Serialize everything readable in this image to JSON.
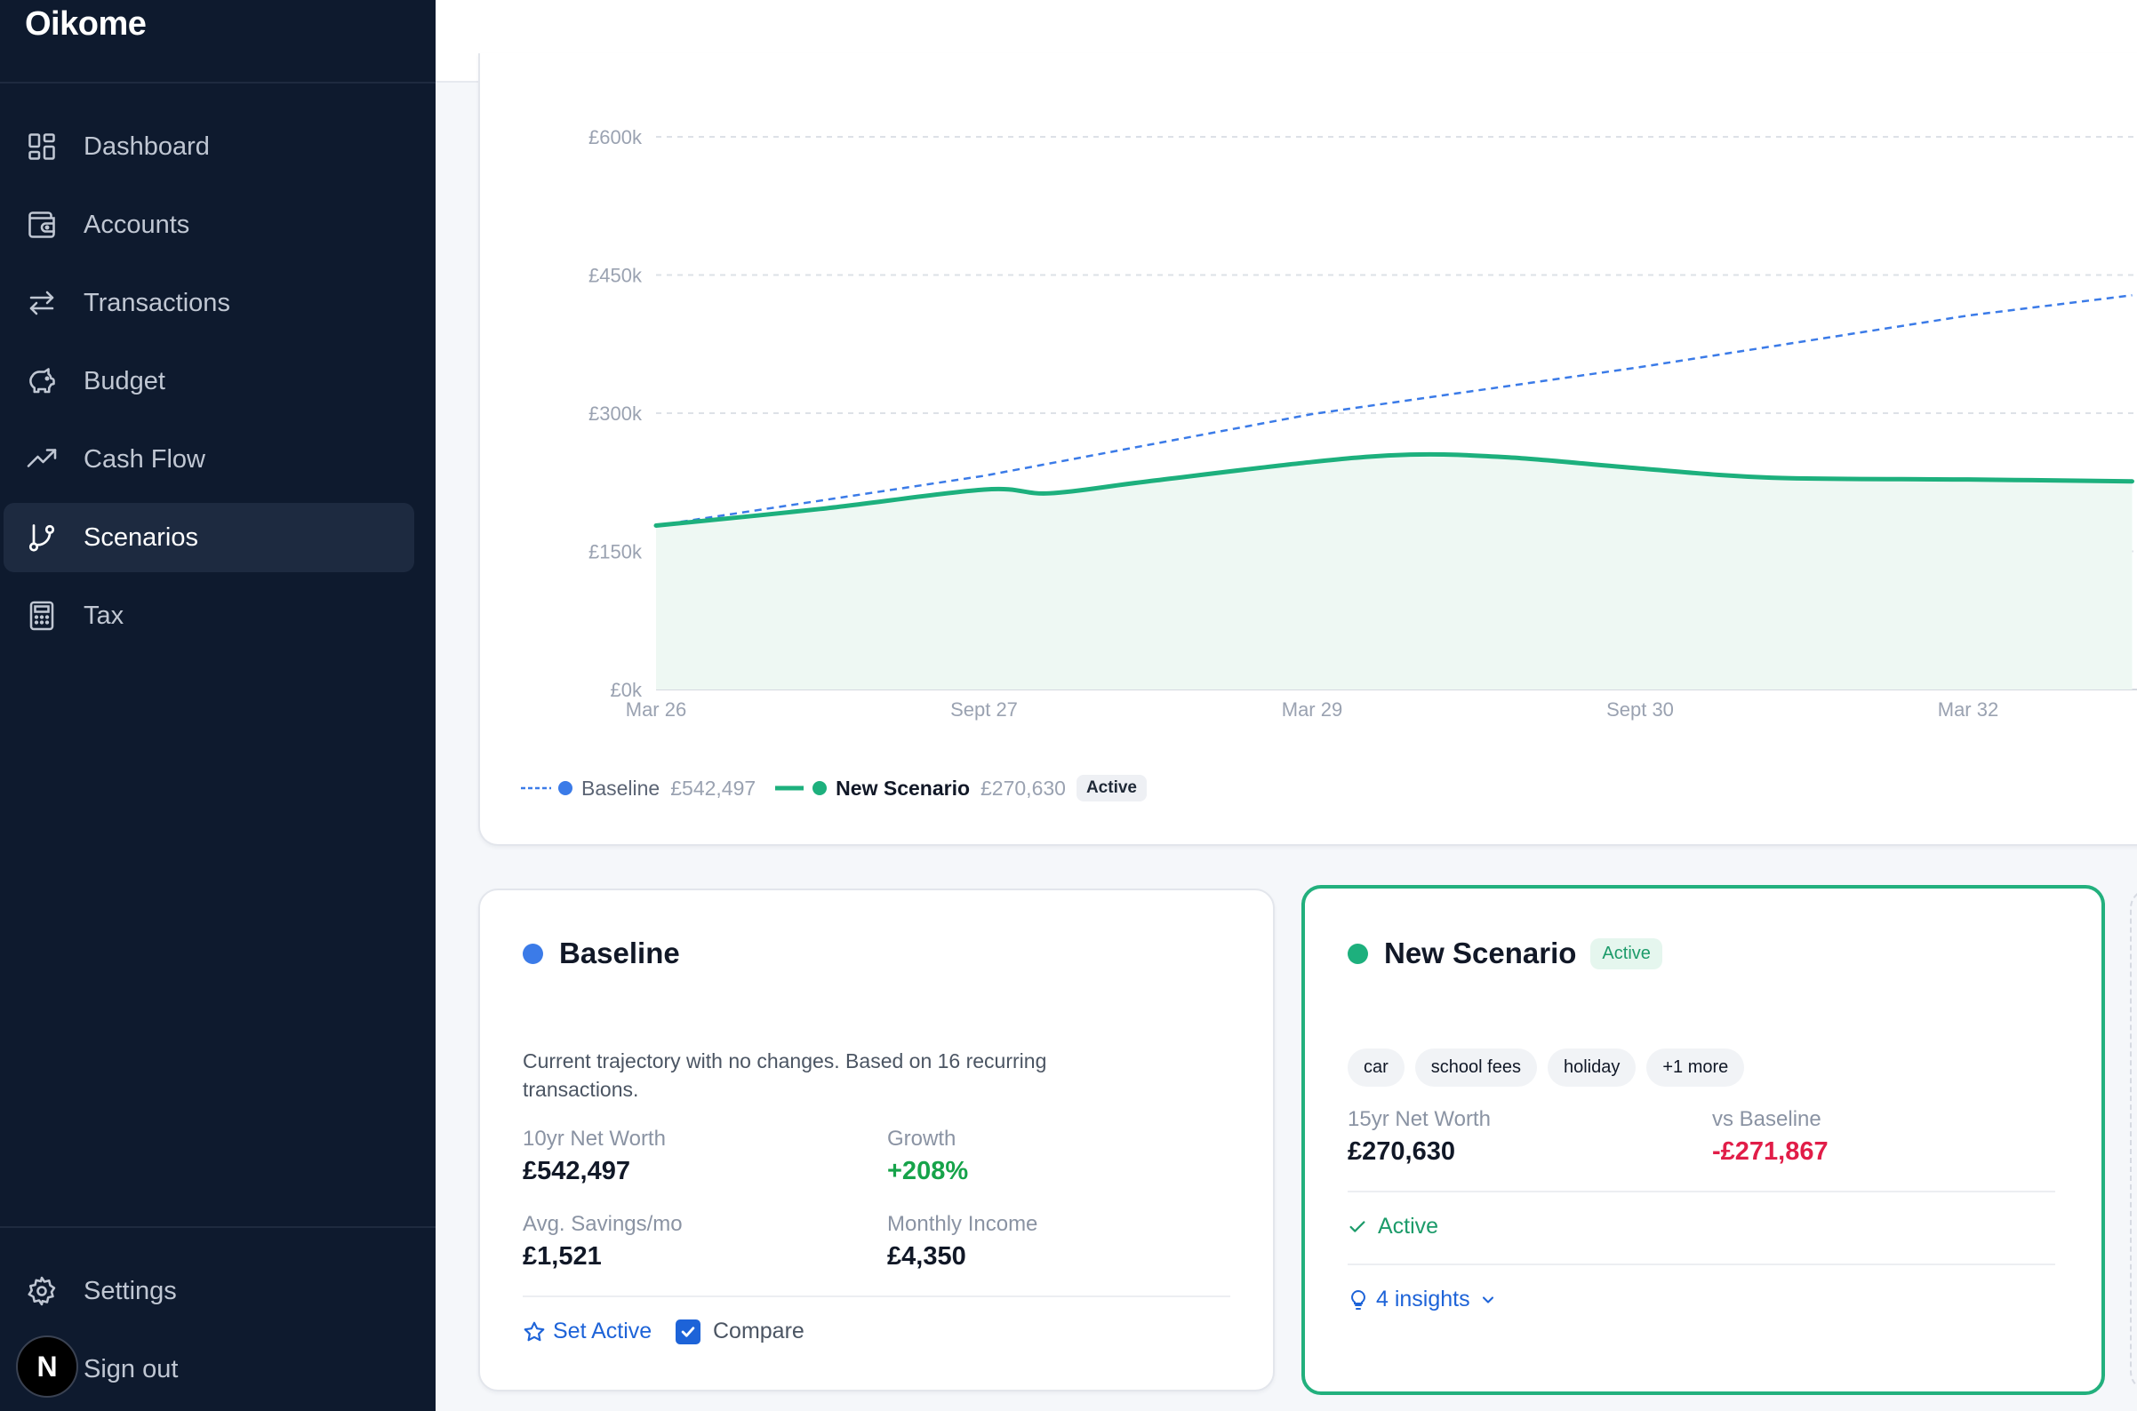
{
  "app": {
    "brand": "Oikome"
  },
  "sidebar": {
    "items": [
      {
        "label": "Dashboard",
        "icon": "dashboard-grid-icon"
      },
      {
        "label": "Accounts",
        "icon": "wallet-icon"
      },
      {
        "label": "Transactions",
        "icon": "arrows-left-right-icon"
      },
      {
        "label": "Budget",
        "icon": "piggy-bank-icon"
      },
      {
        "label": "Cash Flow",
        "icon": "trending-up-icon"
      },
      {
        "label": "Scenarios",
        "icon": "git-branch-icon",
        "active": true
      },
      {
        "label": "Tax",
        "icon": "calculator-icon"
      }
    ],
    "settings_label": "Settings",
    "sign_out_label": "Sign out",
    "avatar_initial": "N"
  },
  "chart_data": {
    "type": "line",
    "title": "",
    "x": [
      "Mar 26",
      "Sept 27",
      "Mar 29",
      "Sept 30",
      "Mar 32"
    ],
    "ylim": [
      0,
      600
    ],
    "yticks": [
      {
        "value": 0,
        "label": "£0k"
      },
      {
        "value": 150,
        "label": "£150k"
      },
      {
        "value": 300,
        "label": "£300k"
      },
      {
        "value": 450,
        "label": "£450k"
      },
      {
        "value": 600,
        "label": "£600k"
      }
    ],
    "grid": true,
    "series": [
      {
        "name": "Baseline",
        "color": "#3b7be8",
        "style": "dashed",
        "points": [
          [
            0,
            178
          ],
          [
            1,
            232
          ],
          [
            2,
            299
          ],
          [
            3,
            350
          ],
          [
            4,
            406
          ],
          [
            4.5,
            428
          ]
        ]
      },
      {
        "name": "New Scenario",
        "color": "#1db07d",
        "style": "solid",
        "area": true,
        "points": [
          [
            0,
            178
          ],
          [
            0.5,
            196
          ],
          [
            1,
            217
          ],
          [
            1.2,
            213
          ],
          [
            1.5,
            226
          ],
          [
            2,
            247
          ],
          [
            2.3,
            255
          ],
          [
            2.6,
            252
          ],
          [
            3,
            240
          ],
          [
            3.4,
            230
          ],
          [
            4,
            228
          ],
          [
            4.5,
            226
          ]
        ]
      }
    ]
  },
  "legend": {
    "baseline": {
      "name": "Baseline",
      "value": "£542,497",
      "color": "#3b7be8"
    },
    "scenario": {
      "name": "New Scenario",
      "value": "£270,630",
      "badge": "Active",
      "color": "#1db07d"
    }
  },
  "baseline_card": {
    "title": "Baseline",
    "color": "#3b7be8",
    "description": "Current trajectory with no changes. Based on 16 recurring transactions.",
    "stats": [
      {
        "label": "10yr Net Worth",
        "value": "£542,497"
      },
      {
        "label": "Growth",
        "value": "+208%"
      },
      {
        "label": "Avg. Savings/mo",
        "value": "£1,521"
      },
      {
        "label": "Monthly Income",
        "value": "£4,350"
      }
    ],
    "set_active_label": "Set Active",
    "compare_label": "Compare"
  },
  "scenario_card": {
    "title": "New Scenario",
    "color": "#1db07d",
    "badge": "Active",
    "tags": [
      "car",
      "school fees",
      "holiday",
      "+1 more"
    ],
    "stats": [
      {
        "label": "15yr Net Worth",
        "value": "£270,630"
      },
      {
        "label": "vs Baseline",
        "value": "-£271,867"
      }
    ],
    "status_label": "Active",
    "insights_label": "4 insights"
  }
}
